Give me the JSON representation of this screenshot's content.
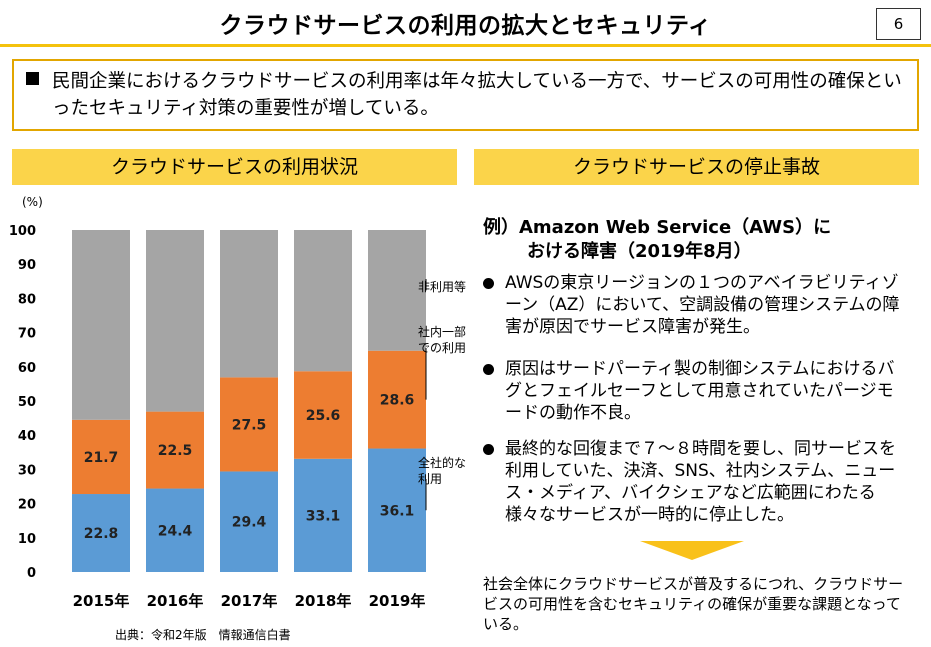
{
  "header": {
    "title": "クラウドサービスの利用の拡大とセキュリティ",
    "page_number": "6"
  },
  "summary": {
    "text": "民間企業におけるクラウドサービスの利用率は年々拡大している一方で、サービスの可用性の確保といったセキュリティ対策の重要性が増している。"
  },
  "left_panel": {
    "heading": "クラウドサービスの利用状況",
    "source": "出典：令和2年版　情報通信白書"
  },
  "right_panel": {
    "heading": "クラウドサービスの停止事故",
    "example_title_line1": "例）Amazon Web Service（AWS）に",
    "example_title_line2": "おける障害（2019年8月）",
    "bullets": [
      "AWSの東京リージョンの１つのアベイラビリティゾーン（AZ）において、空調設備の管理システムの障害が原因でサービス障害が発生。",
      "原因はサードパーティ製の制御システムにおけるバグとフェイルセーフとして用意されていたパージモードの動作不良。",
      "最終的な回復まで７～８時間を要し、同サービスを利用していた、決済、SNS、社内システム、ニュース・メディア、バイクシェアなど広範囲にわたる様々なサービスが一時的に停止した。"
    ],
    "conclusion": "社会全体にクラウドサービスが普及するにつれ、クラウドサービスの可用性を含むセキュリティの確保が重要な課題となっている。"
  },
  "colors": {
    "accent": "#f4c20d",
    "header_fill": "#fbd44a",
    "summary_border": "#e2a600",
    "company_wide": "#5b9bd5",
    "partial": "#ed7d31",
    "non_use": "#a5a5a5"
  },
  "chart_data": {
    "type": "bar",
    "stacked": true,
    "categories": [
      "2015年",
      "2016年",
      "2017年",
      "2018年",
      "2019年"
    ],
    "ylabel": "(%)",
    "ylim": [
      0,
      100
    ],
    "yticks": [
      0,
      10,
      20,
      30,
      40,
      50,
      60,
      70,
      80,
      90,
      100
    ],
    "series": [
      {
        "name": "全社的な利用",
        "label_lines": [
          "全社的な",
          "利用"
        ],
        "values": [
          22.8,
          24.4,
          29.4,
          33.1,
          36.1
        ],
        "color": "#5b9bd5"
      },
      {
        "name": "社内一部での利用",
        "label_lines": [
          "社内一部",
          "での利用"
        ],
        "values": [
          21.7,
          22.5,
          27.5,
          25.6,
          28.6
        ],
        "color": "#ed7d31"
      },
      {
        "name": "非利用等",
        "label_lines": [
          "非利用等"
        ],
        "values": [
          55.5,
          53.1,
          43.1,
          41.3,
          35.3
        ],
        "color": "#a5a5a5"
      }
    ],
    "data_labels_series": [
      0,
      1
    ],
    "legend_placement": "right"
  }
}
